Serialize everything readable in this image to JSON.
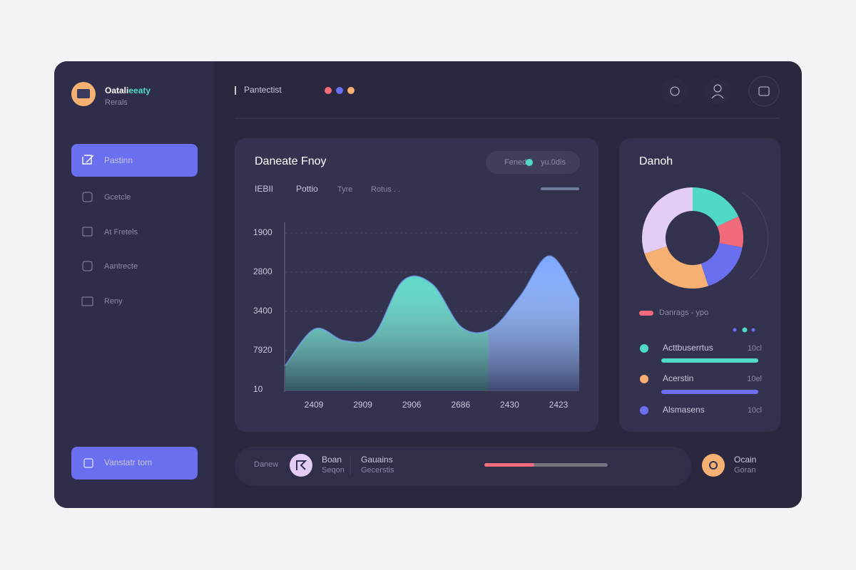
{
  "sidebar": {
    "brand": "Oatali",
    "brand_accent": "eeaty",
    "brand_sub": "Rerals",
    "nav": [
      "Pastinn",
      "Gcetcle",
      "At Fretels",
      "Aantrecte",
      "Reny"
    ],
    "cta": "Vanstatr tom"
  },
  "header": {
    "title": "Pantectist"
  },
  "area_card": {
    "title": "Daneate Fnoy",
    "toggle_left": "Fened",
    "toggle_right": "yu.0dis",
    "tabs": [
      "IEBII",
      "Pottio",
      "Tyre",
      "Rotus . ."
    ],
    "chart": {
      "type": "area",
      "y_labels": [
        "1900",
        "2800",
        "3400",
        "7920",
        "10"
      ],
      "x_labels": [
        "2409",
        "2909",
        "2906",
        "2686",
        "2430",
        "2423"
      ],
      "values": [
        15,
        37,
        30,
        33,
        66,
        64,
        38,
        37,
        57,
        81,
        55
      ],
      "ylim": [
        0,
        100
      ],
      "colors": [
        "#4fd9c6",
        "#7aa7ff"
      ]
    }
  },
  "donut_card": {
    "title": "Danoh",
    "chart": {
      "type": "pie",
      "values": [
        18,
        10,
        17,
        25,
        30
      ],
      "colors": [
        "#4fd9c6",
        "#f26b7a",
        "#6a6ff0",
        "#f5b072",
        "#e3cdf6"
      ]
    },
    "legend": "Danrags - ypo",
    "rows": [
      {
        "name": "Acttbuserrtus",
        "value": "10cl"
      },
      {
        "name": "Acerstin",
        "value": "10el"
      },
      {
        "name": "Alsmasens",
        "value": "10cl"
      }
    ]
  },
  "footer_bar": {
    "label": "Danew",
    "user_name": "Boan",
    "user_sub": "Seqon",
    "stat_name": "Gauains",
    "stat_sub": "Gecerstis",
    "right_name": "Ocain",
    "right_sub": "Goran"
  }
}
